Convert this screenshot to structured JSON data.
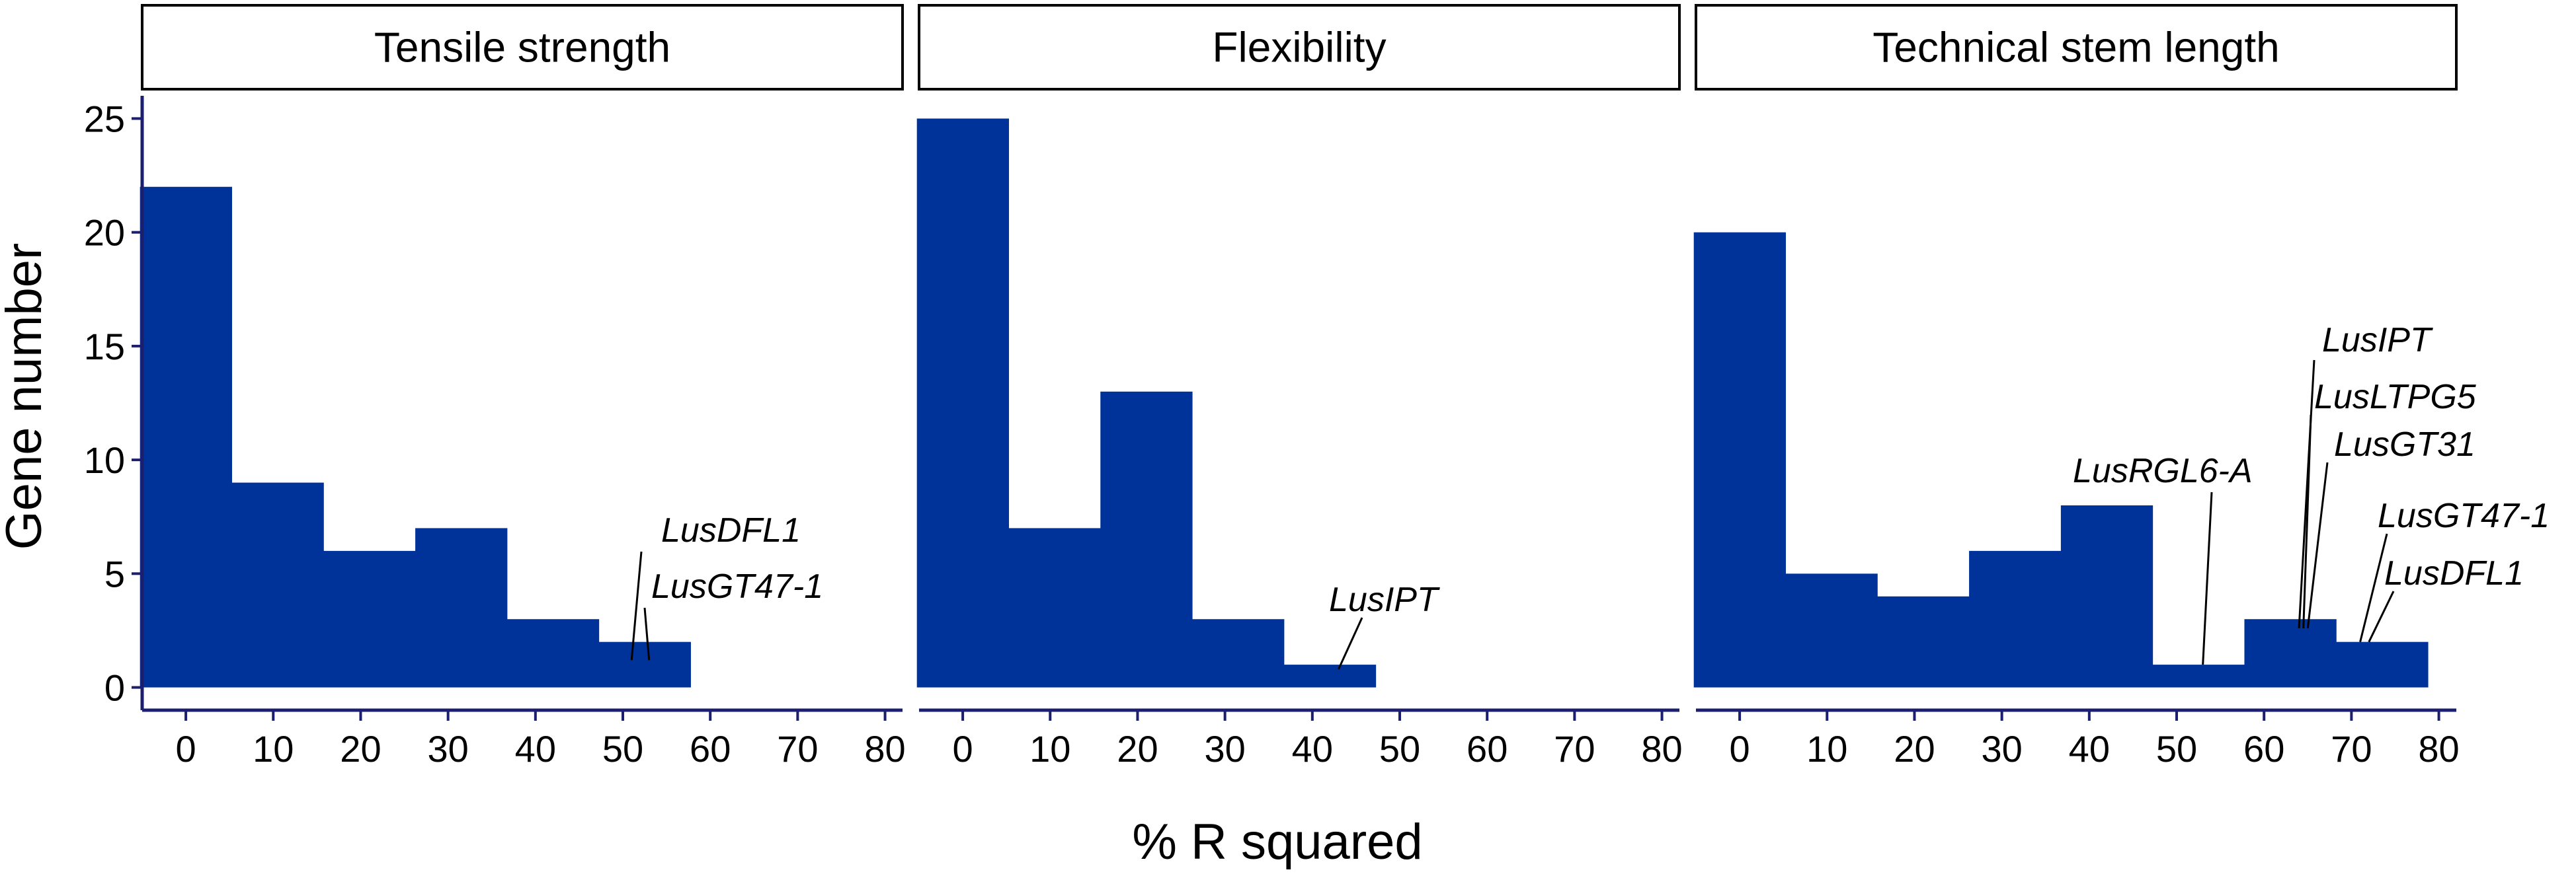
{
  "chart_data": {
    "type": "bar",
    "xlabel": "% R squared",
    "ylabel": "Gene number",
    "xlim": [
      -5,
      82
    ],
    "ylim": [
      -1,
      26
    ],
    "x_ticks": [
      "0",
      "10",
      "20",
      "30",
      "40",
      "50",
      "60",
      "70",
      "80"
    ],
    "y_ticks": [
      "0",
      "5",
      "10",
      "15",
      "20",
      "25"
    ],
    "bar_color": "#003399",
    "bin_width": 10.5,
    "panels": [
      {
        "title": "Tensile strength",
        "bins": [
          {
            "start": -5.25,
            "value": 22
          },
          {
            "start": 5.25,
            "value": 9
          },
          {
            "start": 15.75,
            "value": 6
          },
          {
            "start": 26.25,
            "value": 7
          },
          {
            "start": 36.75,
            "value": 3
          },
          {
            "start": 47.25,
            "value": 2
          }
        ],
        "labels": [
          {
            "text": "LusDFL1",
            "x": 51,
            "y": 1.2
          },
          {
            "text": "LusGT47-1",
            "x": 53,
            "y": 1.2
          }
        ]
      },
      {
        "title": "Flexibility",
        "bins": [
          {
            "start": -5.25,
            "value": 25
          },
          {
            "start": 5.25,
            "value": 7
          },
          {
            "start": 15.75,
            "value": 13
          },
          {
            "start": 26.25,
            "value": 3
          },
          {
            "start": 36.75,
            "value": 1
          }
        ],
        "labels": [
          {
            "text": "LusIPT",
            "x": 43,
            "y": 0.8
          }
        ]
      },
      {
        "title": "Technical stem length",
        "bins": [
          {
            "start": -5.25,
            "value": 20
          },
          {
            "start": 5.25,
            "value": 5
          },
          {
            "start": 15.75,
            "value": 4
          },
          {
            "start": 26.25,
            "value": 6
          },
          {
            "start": 36.75,
            "value": 8
          },
          {
            "start": 47.25,
            "value": 1
          },
          {
            "start": 57.75,
            "value": 3
          },
          {
            "start": 68.25,
            "value": 2
          }
        ],
        "labels": [
          {
            "text": "LusRGL6-A",
            "x": 53,
            "y": 1.0
          },
          {
            "text": "LusIPT",
            "x": 64,
            "y": 2.6
          },
          {
            "text": "LusLTPG5",
            "x": 64.5,
            "y": 2.6
          },
          {
            "text": "LusGT31",
            "x": 65,
            "y": 2.6
          },
          {
            "text": "LusGT47-1",
            "x": 71,
            "y": 2.0
          },
          {
            "text": "LusDFL1",
            "x": 72,
            "y": 2.0
          }
        ]
      }
    ]
  }
}
